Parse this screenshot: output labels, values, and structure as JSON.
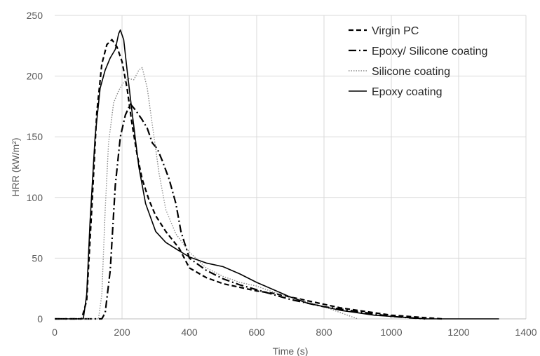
{
  "chart_data": {
    "type": "line",
    "xlabel": "Time (s)",
    "ylabel": "HRR (kW/m²)",
    "xlim": [
      0,
      1400
    ],
    "ylim": [
      0,
      250
    ],
    "x_ticks": [
      0,
      200,
      400,
      600,
      800,
      1000,
      1200,
      1400
    ],
    "y_ticks": [
      0,
      50,
      100,
      150,
      200,
      250
    ],
    "grid": "vertical and horizontal major gridlines",
    "legend_position": "top-right",
    "series": [
      {
        "name": "Virgin PC",
        "color": "#000000",
        "style": "dashed",
        "points": [
          [
            0,
            0
          ],
          [
            80,
            0
          ],
          [
            95,
            15
          ],
          [
            110,
            90
          ],
          [
            125,
            170
          ],
          [
            140,
            210
          ],
          [
            155,
            226
          ],
          [
            170,
            230
          ],
          [
            185,
            224
          ],
          [
            200,
            212
          ],
          [
            215,
            190
          ],
          [
            230,
            160
          ],
          [
            245,
            135
          ],
          [
            260,
            115
          ],
          [
            280,
            98
          ],
          [
            300,
            85
          ],
          [
            330,
            72
          ],
          [
            370,
            58
          ],
          [
            400,
            42
          ],
          [
            450,
            34
          ],
          [
            500,
            29
          ],
          [
            550,
            26
          ],
          [
            600,
            23
          ],
          [
            650,
            21
          ],
          [
            700,
            18
          ],
          [
            750,
            15
          ],
          [
            800,
            12
          ],
          [
            850,
            9
          ],
          [
            900,
            7
          ],
          [
            950,
            5
          ],
          [
            1000,
            3
          ],
          [
            1050,
            2
          ],
          [
            1100,
            1
          ],
          [
            1150,
            0
          ]
        ]
      },
      {
        "name": "Epoxy/ Silicone coating",
        "color": "#000000",
        "style": "dash-dot",
        "points": [
          [
            0,
            0
          ],
          [
            140,
            0
          ],
          [
            150,
            5
          ],
          [
            165,
            40
          ],
          [
            180,
            110
          ],
          [
            195,
            150
          ],
          [
            210,
            168
          ],
          [
            225,
            177
          ],
          [
            240,
            172
          ],
          [
            260,
            164
          ],
          [
            275,
            157
          ],
          [
            290,
            145
          ],
          [
            305,
            140
          ],
          [
            320,
            130
          ],
          [
            340,
            115
          ],
          [
            360,
            95
          ],
          [
            375,
            72
          ],
          [
            400,
            50
          ],
          [
            450,
            40
          ],
          [
            500,
            33
          ],
          [
            550,
            28
          ],
          [
            600,
            24
          ],
          [
            650,
            20
          ],
          [
            700,
            16
          ],
          [
            750,
            13
          ],
          [
            800,
            10
          ],
          [
            850,
            8
          ],
          [
            900,
            6
          ],
          [
            950,
            4
          ],
          [
            1000,
            2
          ],
          [
            1050,
            1
          ],
          [
            1100,
            0
          ]
        ]
      },
      {
        "name": "Silicone coating",
        "color": "#8c8c8c",
        "style": "dotted",
        "points": [
          [
            0,
            0
          ],
          [
            130,
            0
          ],
          [
            140,
            20
          ],
          [
            150,
            90
          ],
          [
            160,
            145
          ],
          [
            175,
            178
          ],
          [
            190,
            188
          ],
          [
            205,
            195
          ],
          [
            220,
            198
          ],
          [
            235,
            197
          ],
          [
            250,
            205
          ],
          [
            260,
            207
          ],
          [
            275,
            190
          ],
          [
            290,
            160
          ],
          [
            310,
            120
          ],
          [
            330,
            90
          ],
          [
            360,
            70
          ],
          [
            400,
            55
          ],
          [
            450,
            42
          ],
          [
            500,
            35
          ],
          [
            550,
            30
          ],
          [
            600,
            27
          ],
          [
            650,
            22
          ],
          [
            700,
            18
          ],
          [
            750,
            14
          ],
          [
            800,
            10
          ],
          [
            850,
            5
          ],
          [
            880,
            2
          ],
          [
            900,
            0
          ]
        ]
      },
      {
        "name": "Epoxy coating",
        "color": "#000000",
        "style": "solid",
        "points": [
          [
            0,
            0
          ],
          [
            85,
            0
          ],
          [
            95,
            20
          ],
          [
            105,
            80
          ],
          [
            120,
            150
          ],
          [
            135,
            190
          ],
          [
            150,
            205
          ],
          [
            165,
            215
          ],
          [
            180,
            222
          ],
          [
            190,
            235
          ],
          [
            195,
            238
          ],
          [
            205,
            230
          ],
          [
            215,
            205
          ],
          [
            230,
            170
          ],
          [
            250,
            125
          ],
          [
            270,
            95
          ],
          [
            300,
            72
          ],
          [
            330,
            63
          ],
          [
            370,
            56
          ],
          [
            400,
            51
          ],
          [
            450,
            46
          ],
          [
            500,
            43
          ],
          [
            550,
            37
          ],
          [
            600,
            30
          ],
          [
            650,
            24
          ],
          [
            700,
            18
          ],
          [
            750,
            13
          ],
          [
            800,
            10
          ],
          [
            850,
            7
          ],
          [
            900,
            5
          ],
          [
            950,
            3
          ],
          [
            1000,
            2
          ],
          [
            1050,
            1
          ],
          [
            1100,
            0
          ],
          [
            1320,
            0
          ]
        ]
      }
    ]
  }
}
